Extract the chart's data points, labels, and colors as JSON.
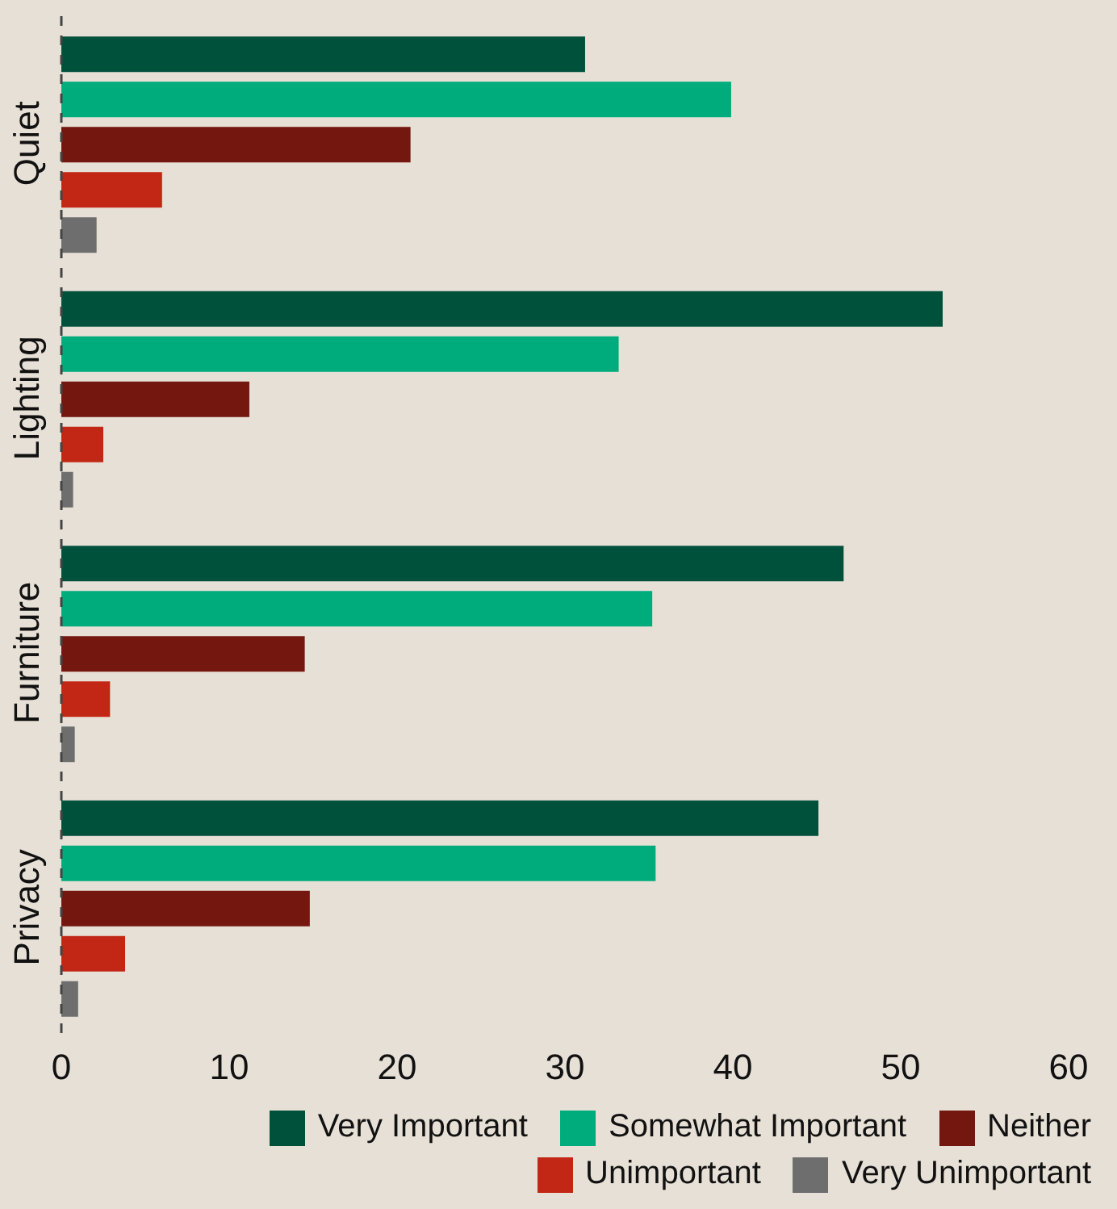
{
  "chart_data": {
    "type": "bar",
    "orientation": "horizontal",
    "categories": [
      "Quiet",
      "Lighting",
      "Furniture",
      "Privacy"
    ],
    "series": [
      {
        "name": "Very Important",
        "color": "#00513b",
        "values": [
          31.2,
          52.5,
          46.6,
          45.1
        ]
      },
      {
        "name": "Somewhat Important",
        "color": "#00ab7c",
        "values": [
          39.9,
          33.2,
          35.2,
          35.4
        ]
      },
      {
        "name": "Neither",
        "color": "#73170f",
        "values": [
          20.8,
          11.2,
          14.5,
          14.8
        ]
      },
      {
        "name": "Unimportant",
        "color": "#c22716",
        "values": [
          6.0,
          2.5,
          2.9,
          3.8
        ]
      },
      {
        "name": "Very Unimportant",
        "color": "#6e6e6e",
        "values": [
          2.1,
          0.7,
          0.8,
          1.0
        ]
      }
    ],
    "xlim": [
      0,
      60
    ],
    "xticks": [
      0,
      10,
      20,
      30,
      40,
      50,
      60
    ],
    "grid": false,
    "legend": "bottom"
  }
}
